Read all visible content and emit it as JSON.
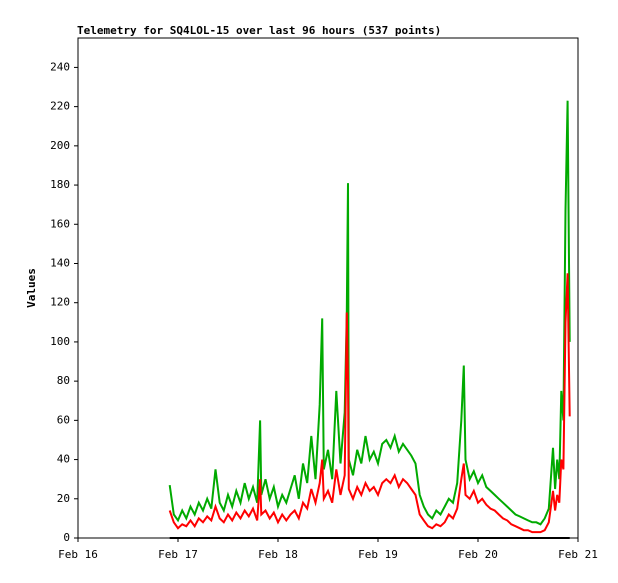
{
  "chart_data": {
    "type": "line",
    "title": "Telemetry for SQ4LOL-15 over last 96 hours (537 points)",
    "y_label": "Values",
    "x": [
      22,
      23,
      24,
      25,
      26,
      27,
      28,
      29,
      30,
      31,
      32,
      33,
      34,
      35,
      36,
      37,
      38,
      39,
      40,
      41,
      42,
      43,
      43.7,
      44,
      45,
      46,
      47,
      48,
      49,
      50,
      51,
      52,
      53,
      54,
      55,
      56,
      57,
      58,
      58.6,
      59,
      60,
      61,
      62,
      63,
      64,
      64.5,
      64.8,
      65,
      66,
      67,
      68,
      69,
      70,
      71,
      72,
      73,
      74,
      75,
      76,
      77,
      78,
      79,
      80,
      81,
      82,
      83,
      84,
      85,
      86,
      87,
      88,
      89,
      90,
      91,
      92,
      92.6,
      93,
      94,
      95,
      96,
      97,
      98,
      99,
      100,
      101,
      102,
      103,
      104,
      105,
      106,
      107,
      108,
      109,
      110,
      111,
      112,
      113,
      114,
      114.5,
      115,
      115.5,
      116,
      116.5,
      117,
      117.5,
      118
    ],
    "series": [
      {
        "name": "green",
        "color": "#00aa00",
        "values": [
          27,
          12,
          9,
          14,
          10,
          16,
          12,
          18,
          14,
          20,
          15,
          35,
          18,
          14,
          22,
          16,
          24,
          18,
          28,
          20,
          26,
          18,
          60,
          22,
          30,
          20,
          26,
          16,
          22,
          18,
          25,
          32,
          20,
          38,
          28,
          52,
          30,
          68,
          112,
          35,
          45,
          30,
          75,
          38,
          64,
          115,
          181,
          40,
          32,
          45,
          38,
          52,
          40,
          44,
          38,
          48,
          50,
          46,
          52,
          44,
          48,
          45,
          42,
          38,
          22,
          16,
          12,
          10,
          14,
          12,
          16,
          20,
          18,
          28,
          60,
          88,
          40,
          30,
          34,
          28,
          32,
          26,
          24,
          22,
          20,
          18,
          16,
          14,
          12,
          11,
          10,
          9,
          8,
          8,
          7,
          10,
          15,
          46,
          25,
          40,
          30,
          75,
          60,
          167,
          223,
          100
        ]
      },
      {
        "name": "red",
        "color": "#ff0000",
        "values": [
          14,
          8,
          5,
          7,
          6,
          9,
          6,
          10,
          8,
          11,
          9,
          16,
          10,
          8,
          12,
          9,
          13,
          10,
          14,
          11,
          15,
          9,
          30,
          12,
          14,
          10,
          13,
          8,
          12,
          9,
          12,
          14,
          10,
          18,
          15,
          25,
          18,
          28,
          40,
          20,
          24,
          18,
          35,
          22,
          32,
          115,
          80,
          25,
          20,
          26,
          22,
          28,
          24,
          26,
          22,
          28,
          30,
          28,
          32,
          26,
          30,
          28,
          25,
          22,
          12,
          9,
          6,
          5,
          7,
          6,
          8,
          12,
          10,
          15,
          30,
          38,
          22,
          20,
          24,
          18,
          20,
          17,
          15,
          14,
          12,
          10,
          9,
          7,
          6,
          5,
          4,
          4,
          3,
          3,
          3,
          4,
          8,
          24,
          14,
          22,
          18,
          40,
          35,
          110,
          135,
          62
        ]
      },
      {
        "name": "black",
        "color": "#000000",
        "values": [
          0,
          0,
          0,
          0,
          0,
          0,
          0,
          0,
          0,
          0,
          0,
          0,
          0,
          0,
          0,
          0,
          0,
          0,
          0,
          0,
          0,
          0,
          0,
          0,
          0,
          0,
          0,
          0,
          0,
          0,
          0,
          0,
          0,
          0,
          0,
          0,
          0,
          0,
          0,
          0,
          0,
          0,
          0,
          0,
          0,
          0,
          0,
          0,
          0,
          0,
          0,
          0,
          0,
          0,
          0,
          0,
          0,
          0,
          0,
          0,
          0,
          0,
          0,
          0,
          0,
          0,
          0,
          0,
          0,
          0,
          0,
          0,
          0,
          0,
          0,
          0,
          0,
          0,
          0,
          0,
          0,
          0,
          0,
          0,
          0,
          0,
          0,
          0,
          0,
          0,
          0,
          0,
          0,
          0,
          0,
          0,
          0,
          0,
          0,
          0,
          0,
          0,
          0,
          0,
          0,
          0
        ]
      }
    ],
    "xlim": [
      0,
      120
    ],
    "xticks": [
      {
        "value": 0,
        "label": "Feb 16"
      },
      {
        "value": 24,
        "label": "Feb 17"
      },
      {
        "value": 48,
        "label": "Feb 18"
      },
      {
        "value": 72,
        "label": "Feb 19"
      },
      {
        "value": 96,
        "label": "Feb 20"
      },
      {
        "value": 120,
        "label": "Feb 21"
      }
    ],
    "ylim": [
      0,
      255
    ],
    "yticks": [
      0,
      20,
      40,
      60,
      80,
      100,
      120,
      140,
      160,
      180,
      200,
      220,
      240
    ]
  }
}
